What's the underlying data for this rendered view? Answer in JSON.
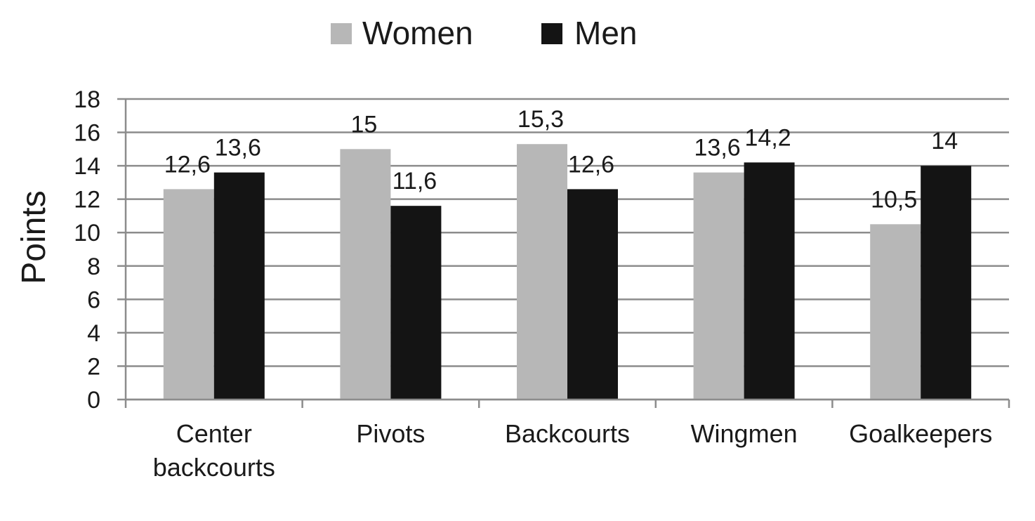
{
  "chart_data": {
    "type": "bar",
    "title": "",
    "xlabel": "",
    "ylabel": "Points",
    "ylim": [
      0,
      18
    ],
    "yticks": [
      0,
      2,
      4,
      6,
      8,
      10,
      12,
      14,
      16,
      18
    ],
    "ytick_labels": [
      "0",
      "2",
      "4",
      "6",
      "8",
      "10",
      "12",
      "14",
      "16",
      "18"
    ],
    "grid": true,
    "legend_position": "top-center",
    "categories": [
      [
        "Center",
        "backcourts"
      ],
      [
        "Pivots"
      ],
      [
        "Backcourts"
      ],
      [
        "Wingmen"
      ],
      [
        "Goalkeepers"
      ]
    ],
    "series": [
      {
        "name": "Women",
        "color": "#b7b7b7",
        "values": [
          12.6,
          15,
          15.3,
          13.6,
          10.5
        ],
        "labels": [
          "12,6",
          "15",
          "15,3",
          "13,6",
          "10,5"
        ]
      },
      {
        "name": "Men",
        "color": "#141414",
        "values": [
          13.6,
          11.6,
          12.6,
          14.2,
          14
        ],
        "labels": [
          "13,6",
          "11,6",
          "12,6",
          "14,2",
          "14"
        ]
      }
    ]
  }
}
